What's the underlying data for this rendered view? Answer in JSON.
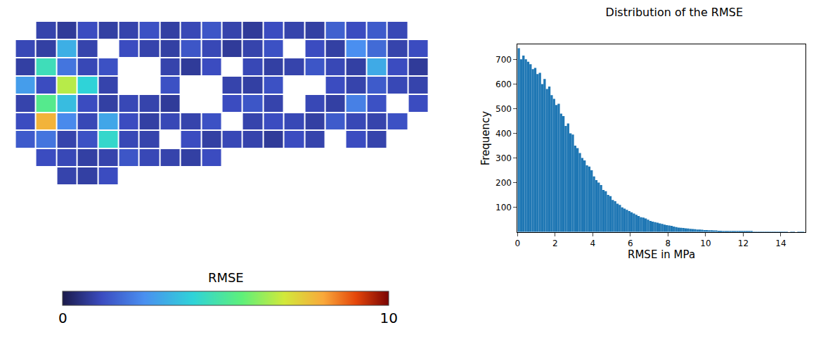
{
  "chart_data": [
    {
      "type": "heatmap",
      "tick_labels": false,
      "cells": [
        [
          null,
          1,
          0.8,
          1.2,
          0.9,
          1,
          1.3,
          0.9,
          1.1,
          1.4,
          1,
          0.8,
          1.2,
          1,
          0.9,
          1.6,
          1.2,
          1.5,
          1.1,
          null
        ],
        [
          1.1,
          0.9,
          3.2,
          1,
          null,
          1.2,
          1,
          0.9,
          1.4,
          1.1,
          0.8,
          1,
          1.3,
          null,
          1.2,
          0.9,
          2.5,
          1.8,
          1,
          1.2
        ],
        [
          0.9,
          4.5,
          2,
          1.1,
          1.3,
          null,
          null,
          1,
          0.8,
          1.2,
          null,
          1.1,
          0.9,
          1,
          1.4,
          1.1,
          0.9,
          3.1,
          1.2,
          0.8
        ],
        [
          2.8,
          1.2,
          6.5,
          4,
          1,
          null,
          null,
          1.3,
          null,
          null,
          1,
          0.9,
          1.3,
          null,
          null,
          1.2,
          1,
          1.5,
          1.1,
          1
        ],
        [
          1,
          5.2,
          3.5,
          1.2,
          0.9,
          1.1,
          1,
          0.8,
          null,
          null,
          1.2,
          1.4,
          1,
          null,
          1.1,
          0.9,
          2.2,
          1.3,
          null,
          1.2
        ],
        [
          1.2,
          7.8,
          2.4,
          1.1,
          3,
          1.2,
          0.9,
          1.1,
          1,
          1.3,
          null,
          1,
          1.2,
          1.1,
          0.9,
          1.5,
          1.1,
          1,
          1.3,
          null
        ],
        [
          1.5,
          2,
          1,
          1.3,
          4.2,
          1.1,
          1,
          null,
          1.2,
          0.9,
          1.1,
          1,
          0.8,
          1.2,
          1,
          null,
          1.2,
          1,
          null,
          null
        ],
        [
          null,
          1.2,
          1.1,
          0.9,
          1,
          1.4,
          1.1,
          1,
          0.9,
          1.2,
          null,
          null,
          null,
          null,
          null,
          null,
          null,
          null,
          null,
          null
        ],
        [
          null,
          null,
          1,
          0.9,
          1.2,
          null,
          null,
          null,
          null,
          null,
          null,
          null,
          null,
          null,
          null,
          null,
          null,
          null,
          null,
          null
        ]
      ],
      "colorbar": {
        "title": "RMSE",
        "range": [
          0,
          10
        ],
        "ticks": [
          0,
          10
        ]
      }
    },
    {
      "type": "histogram",
      "title": "Distribution of the RMSE",
      "x_label": "RMSE in MPa",
      "y_label": "Frequency",
      "color": "#1f77b4",
      "bins": [
        0,
        0.125,
        0.25,
        0.375,
        0.5,
        0.625,
        0.75,
        0.875,
        1,
        1.125,
        1.25,
        1.375,
        1.5,
        1.625,
        1.75,
        1.875,
        2,
        2.125,
        2.25,
        2.375,
        2.5,
        2.625,
        2.75,
        2.875,
        3,
        3.125,
        3.25,
        3.375,
        3.5,
        3.625,
        3.75,
        3.875,
        4,
        4.125,
        4.25,
        4.375,
        4.5,
        4.625,
        4.75,
        4.875,
        5,
        5.125,
        5.25,
        5.375,
        5.5,
        5.625,
        5.75,
        5.875,
        6,
        6.125,
        6.25,
        6.375,
        6.5,
        6.625,
        6.75,
        6.875,
        7,
        7.125,
        7.25,
        7.375,
        7.5,
        7.625,
        7.75,
        7.875,
        8,
        8.125,
        8.25,
        8.375,
        8.5,
        8.625,
        8.75,
        8.875,
        9,
        9.125,
        9.25,
        9.375,
        9.5,
        9.625,
        9.75,
        9.875,
        10,
        10.125,
        10.25,
        10.375,
        10.5,
        10.625,
        10.75,
        10.875,
        11,
        11.125,
        11.25,
        11.375,
        11.5,
        11.625,
        11.75,
        11.875,
        12,
        12.125,
        12.25,
        12.375,
        12.5,
        12.625,
        12.75,
        12.875,
        13,
        13.125,
        13.25,
        13.375,
        13.5,
        13.625,
        13.75,
        13.875,
        14,
        14.125,
        14.25,
        14.375,
        14.5,
        14.625,
        14.75,
        14.875,
        15,
        15.125,
        15.25
      ],
      "values": [
        745,
        700,
        715,
        700,
        690,
        680,
        660,
        665,
        640,
        645,
        600,
        620,
        580,
        590,
        555,
        540,
        515,
        520,
        480,
        470,
        430,
        440,
        400,
        395,
        350,
        340,
        320,
        300,
        290,
        270,
        265,
        250,
        225,
        210,
        200,
        190,
        170,
        165,
        150,
        145,
        130,
        125,
        115,
        110,
        100,
        95,
        90,
        85,
        80,
        75,
        70,
        65,
        60,
        58,
        55,
        50,
        45,
        42,
        40,
        38,
        35,
        33,
        30,
        28,
        26,
        25,
        22,
        20,
        18,
        17,
        16,
        15,
        14,
        13,
        12,
        11,
        10,
        10,
        9,
        8,
        8,
        7,
        7,
        6,
        6,
        5,
        5,
        4,
        4,
        4,
        3,
        3,
        3,
        3,
        2,
        2,
        2,
        2,
        2,
        2,
        1,
        1,
        1,
        1,
        1,
        1,
        1,
        1,
        1,
        1,
        1,
        1,
        1,
        1,
        1,
        0,
        1,
        1,
        0,
        1,
        1,
        1
      ],
      "xlim": [
        0,
        15.3
      ],
      "xticks": [
        0,
        2,
        4,
        6,
        8,
        10,
        12,
        14
      ],
      "ylim": [
        0,
        760
      ],
      "yticks": [
        100,
        200,
        300,
        400,
        500,
        600,
        700
      ]
    }
  ]
}
